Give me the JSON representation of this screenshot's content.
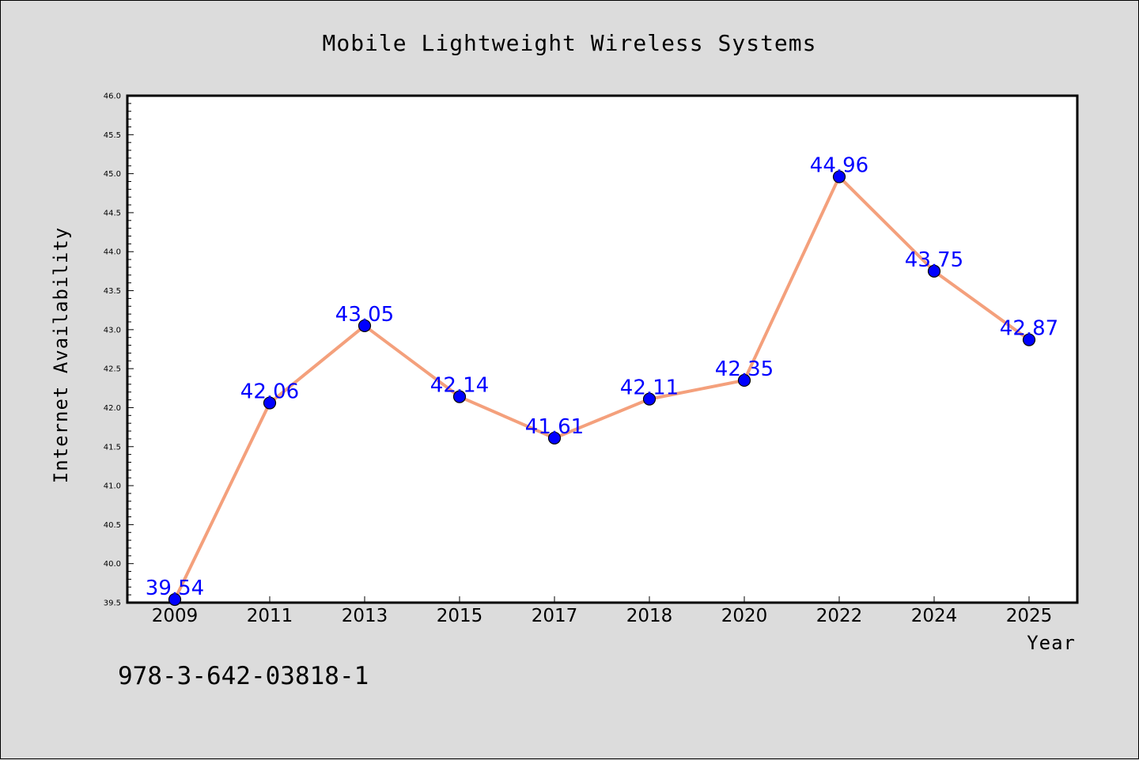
{
  "chart_data": {
    "type": "line",
    "title": "Mobile Lightweight Wireless Systems",
    "xlabel": "Year",
    "ylabel": "Internet Availability",
    "categories": [
      "2009",
      "2011",
      "2013",
      "2015",
      "2017",
      "2018",
      "2020",
      "2022",
      "2024",
      "2025"
    ],
    "series": [
      {
        "values": [
          39.54,
          42.06,
          43.05,
          42.14,
          41.61,
          42.11,
          42.35,
          44.96,
          43.75,
          42.87
        ],
        "data_labels": [
          "39.54",
          "42.06",
          "43.05",
          "42.14",
          "41.61",
          "42.11",
          "42.35",
          "44.96",
          "43.75",
          "42.87"
        ],
        "line_color": "#f4a07c",
        "marker_color": "#0000ff"
      }
    ],
    "ylim": [
      39.5,
      46.0
    ],
    "yticks": [
      "39.5",
      "40.0",
      "40.5",
      "41.0",
      "41.5",
      "42.0",
      "42.5",
      "43.0",
      "43.5",
      "44.0",
      "44.5",
      "45.0",
      "45.5",
      "46.0"
    ],
    "grid": false,
    "legend": "none"
  },
  "footnote": "978-3-642-03818-1",
  "colors": {
    "background": "#dcdcdc",
    "plot_background": "#ffffff",
    "data_label": "#0000ff"
  }
}
